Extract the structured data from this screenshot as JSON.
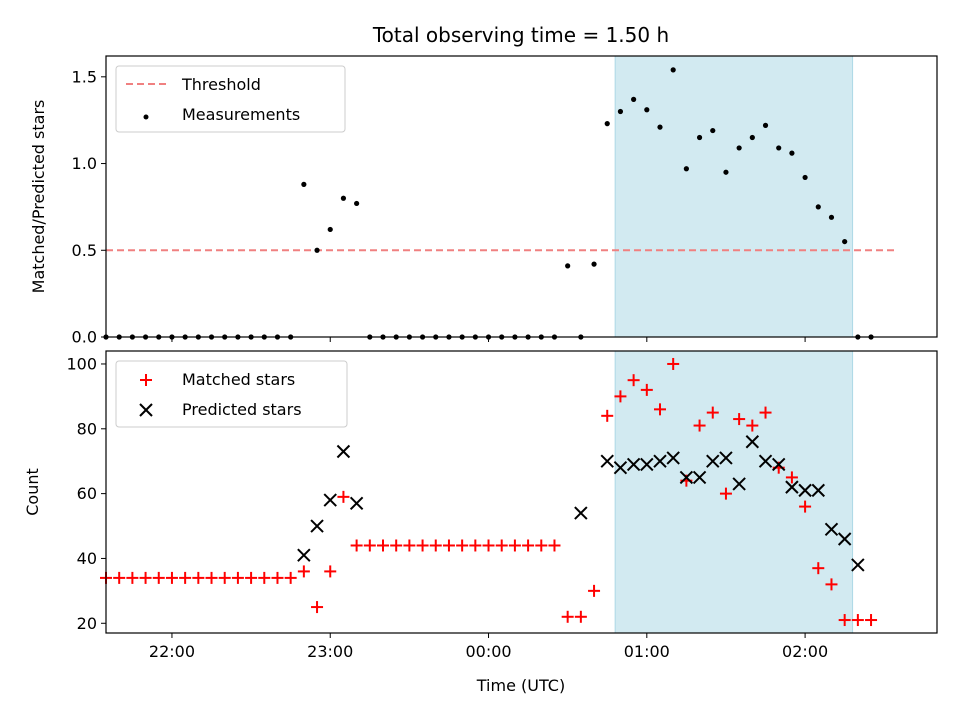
{
  "title": "Total observing time = 1.50 h",
  "colors": {
    "threshold": "#f08080",
    "measurement": "#000000",
    "matched": "#ff0000",
    "predicted": "#000000",
    "highlight": "#add8e6"
  },
  "chart_data": [
    {
      "type": "scatter",
      "panel": "top",
      "title": "Total observing time = 1.50 h",
      "xlabel": "",
      "ylabel": "Matched/Predicted stars",
      "xlim": [
        "21:35",
        "02:50"
      ],
      "ylim": [
        0,
        1.62
      ],
      "y_ticks": [
        0.0,
        0.5,
        1.0,
        1.5
      ],
      "y_tick_labels": [
        "0.0",
        "0.5",
        "1.0",
        "1.5"
      ],
      "x_ticks": [
        "22:00",
        "23:00",
        "00:00",
        "01:00",
        "02:00"
      ],
      "highlight_span": [
        "00:48",
        "02:18"
      ],
      "legend_position": "upper left",
      "series": [
        {
          "name": "Threshold",
          "style": "dashed-line",
          "x": [
            "21:35",
            "02:35"
          ],
          "y": [
            0.5,
            0.5
          ]
        },
        {
          "name": "Measurements",
          "style": "dots",
          "x": [
            "21:35",
            "21:40",
            "21:45",
            "21:50",
            "21:55",
            "22:00",
            "22:05",
            "22:10",
            "22:15",
            "22:20",
            "22:25",
            "22:30",
            "22:35",
            "22:40",
            "22:45",
            "22:50",
            "22:55",
            "23:00",
            "23:05",
            "23:10",
            "23:15",
            "23:20",
            "23:25",
            "23:30",
            "23:35",
            "23:40",
            "23:45",
            "23:50",
            "23:55",
            "00:00",
            "00:05",
            "00:10",
            "00:15",
            "00:20",
            "00:25",
            "00:30",
            "00:35",
            "00:40",
            "00:45",
            "00:50",
            "00:55",
            "01:00",
            "01:05",
            "01:10",
            "01:15",
            "01:20",
            "01:25",
            "01:30",
            "01:35",
            "01:40",
            "01:45",
            "01:50",
            "01:55",
            "02:00",
            "02:05",
            "02:10",
            "02:15",
            "02:20",
            "02:25"
          ],
          "y": [
            0,
            0,
            0,
            0,
            0,
            0,
            0,
            0,
            0,
            0,
            0,
            0,
            0,
            0,
            0,
            0.88,
            0.5,
            0.62,
            0.8,
            0.77,
            0,
            0,
            0,
            0,
            0,
            0,
            0,
            0,
            0,
            0,
            0,
            0,
            0,
            0,
            0,
            0.41,
            0,
            0.42,
            1.23,
            1.3,
            1.37,
            1.31,
            1.21,
            1.54,
            0.97,
            1.15,
            1.19,
            0.95,
            1.09,
            1.15,
            1.22,
            1.09,
            1.06,
            0.92,
            0.75,
            0.69,
            0.55,
            0,
            0
          ]
        }
      ]
    },
    {
      "type": "scatter",
      "panel": "bottom",
      "xlabel": "Time (UTC)",
      "ylabel": "Count",
      "xlim": [
        "21:35",
        "02:50"
      ],
      "ylim": [
        17,
        104
      ],
      "y_ticks": [
        20,
        40,
        60,
        80,
        100
      ],
      "y_tick_labels": [
        "20",
        "40",
        "60",
        "80",
        "100"
      ],
      "x_ticks": [
        "22:00",
        "23:00",
        "00:00",
        "01:00",
        "02:00"
      ],
      "x_tick_labels": [
        "22:00",
        "23:00",
        "00:00",
        "01:00",
        "02:00"
      ],
      "highlight_span": [
        "00:48",
        "02:18"
      ],
      "legend_position": "upper left",
      "series": [
        {
          "name": "Matched stars",
          "marker": "plus",
          "x": [
            "21:35",
            "21:40",
            "21:45",
            "21:50",
            "21:55",
            "22:00",
            "22:05",
            "22:10",
            "22:15",
            "22:20",
            "22:25",
            "22:30",
            "22:35",
            "22:40",
            "22:45",
            "22:50",
            "22:55",
            "23:00",
            "23:05",
            "23:10",
            "23:15",
            "23:20",
            "23:25",
            "23:30",
            "23:35",
            "23:40",
            "23:45",
            "23:50",
            "23:55",
            "00:00",
            "00:05",
            "00:10",
            "00:15",
            "00:20",
            "00:25",
            "00:30",
            "00:35",
            "00:40",
            "00:45",
            "00:50",
            "00:55",
            "01:00",
            "01:05",
            "01:10",
            "01:15",
            "01:20",
            "01:25",
            "01:30",
            "01:35",
            "01:40",
            "01:45",
            "01:50",
            "01:55",
            "02:00",
            "02:05",
            "02:10",
            "02:15",
            "02:20",
            "02:25"
          ],
          "y": [
            34,
            34,
            34,
            34,
            34,
            34,
            34,
            34,
            34,
            34,
            34,
            34,
            34,
            34,
            34,
            36,
            25,
            36,
            59,
            44,
            44,
            44,
            44,
            44,
            44,
            44,
            44,
            44,
            44,
            44,
            44,
            44,
            44,
            44,
            44,
            22,
            22,
            30,
            84,
            90,
            95,
            92,
            86,
            100,
            64,
            81,
            85,
            60,
            83,
            81,
            85,
            68,
            65,
            56,
            37,
            32,
            21,
            21,
            21
          ]
        },
        {
          "name": "Predicted stars",
          "marker": "x",
          "x": [
            "22:50",
            "22:55",
            "23:00",
            "23:05",
            "23:10",
            "00:35",
            "00:45",
            "00:50",
            "00:55",
            "01:00",
            "01:05",
            "01:10",
            "01:15",
            "01:20",
            "01:25",
            "01:30",
            "01:35",
            "01:40",
            "01:45",
            "01:50",
            "01:55",
            "02:00",
            "02:05",
            "02:10",
            "02:15",
            "02:20"
          ],
          "y": [
            41,
            50,
            58,
            73,
            57,
            54,
            70,
            68,
            69,
            69,
            70,
            71,
            65,
            65,
            70,
            71,
            63,
            76,
            70,
            69,
            62,
            61,
            61,
            49,
            46,
            38
          ]
        }
      ]
    }
  ]
}
